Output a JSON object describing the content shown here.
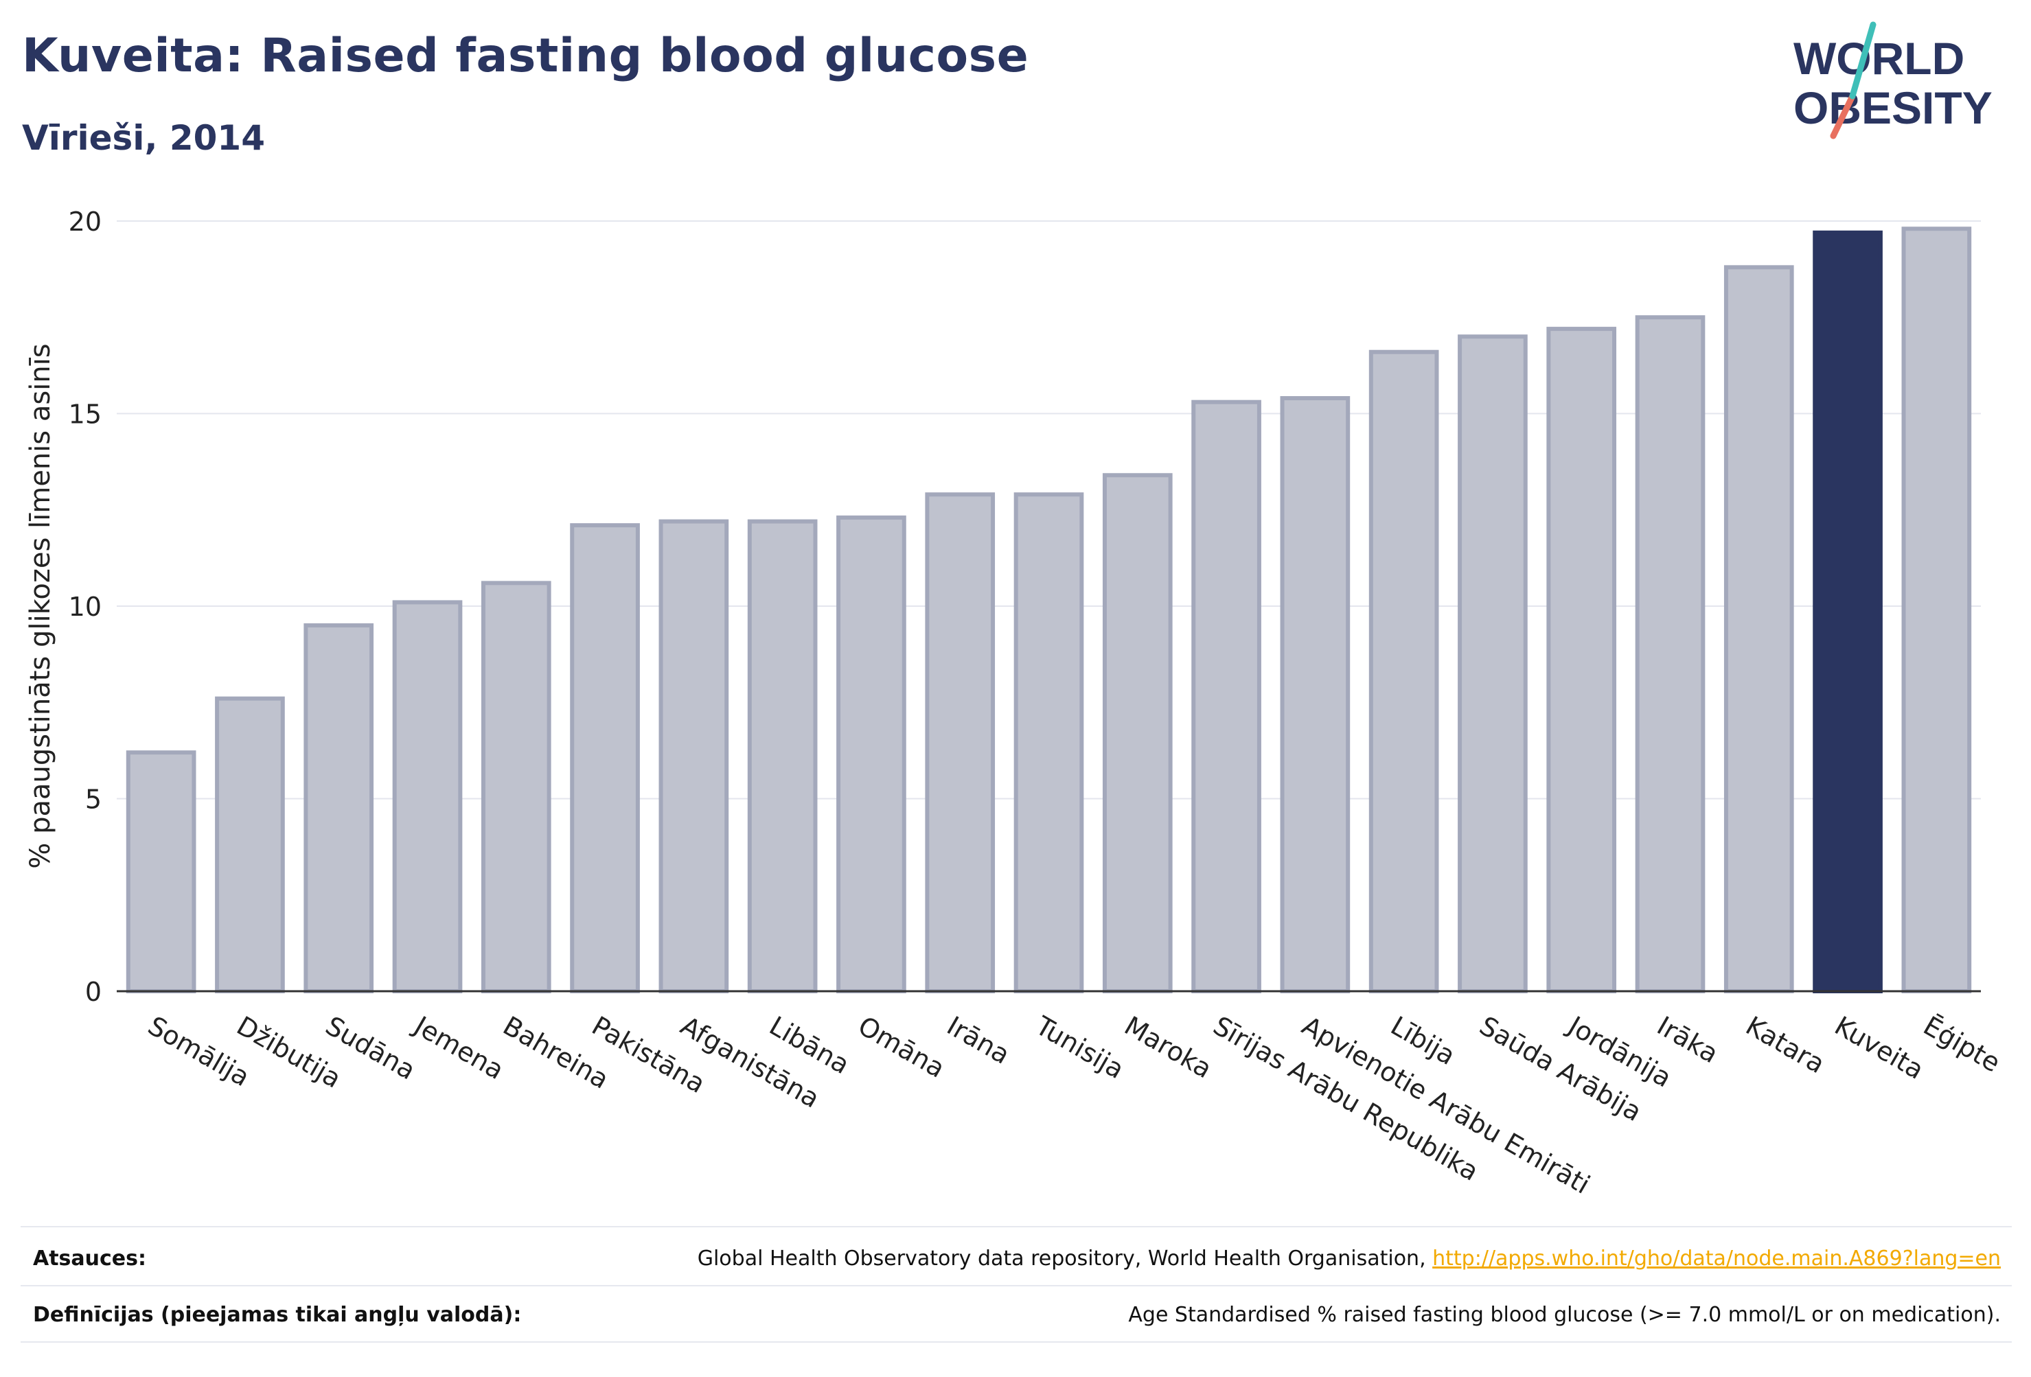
{
  "header": {
    "title": "Kuveita: Raised fasting blood glucose",
    "subtitle": "Vīrieši, 2014"
  },
  "logo": {
    "line1": "WORLD",
    "line2": "OBESITY"
  },
  "chart_data": {
    "type": "bar",
    "ylabel": "% paaugstināts glikozes līmenis asinīs",
    "ylim": [
      0,
      20
    ],
    "yticks": [
      0,
      5,
      10,
      15,
      20
    ],
    "grid": true,
    "categories": [
      "Somālija",
      "Džibutija",
      "Sudāna",
      "Jemena",
      "Bahreina",
      "Pakistāna",
      "Afganistāna",
      "Libāna",
      "Omāna",
      "Irāna",
      "Tunisija",
      "Maroka",
      "Sīrijas Arābu Republika",
      "Apvienotie Arābu Emirāti",
      "Lībija",
      "Saūda Arābija",
      "Jordānija",
      "Irāka",
      "Katara",
      "Kuveita",
      "Ēģipte"
    ],
    "values": [
      6.2,
      7.6,
      9.5,
      10.1,
      10.6,
      12.1,
      12.2,
      12.2,
      12.3,
      12.9,
      12.9,
      13.4,
      15.3,
      15.4,
      16.6,
      17.0,
      17.2,
      17.5,
      18.8,
      19.7,
      19.8
    ],
    "highlight": "Kuveita",
    "colors": {
      "bar": "#bfc2ce",
      "bar_edge": "#a3a8bb",
      "highlight": "#2a3560",
      "grid": "#e4e6ee",
      "axis": "#333333"
    }
  },
  "footer": {
    "sources_label": "Atsauces:",
    "sources_text": "Global Health Observatory data repository, World Health Organisation, ",
    "sources_link": "http://apps.who.int/gho/data/node.main.A869?lang=en",
    "definitions_label": "Definīcijas (pieejamas tikai angļu valodā):",
    "definitions_text": "Age Standardised % raised fasting blood glucose (>= 7.0 mmol/L or on medication)."
  }
}
